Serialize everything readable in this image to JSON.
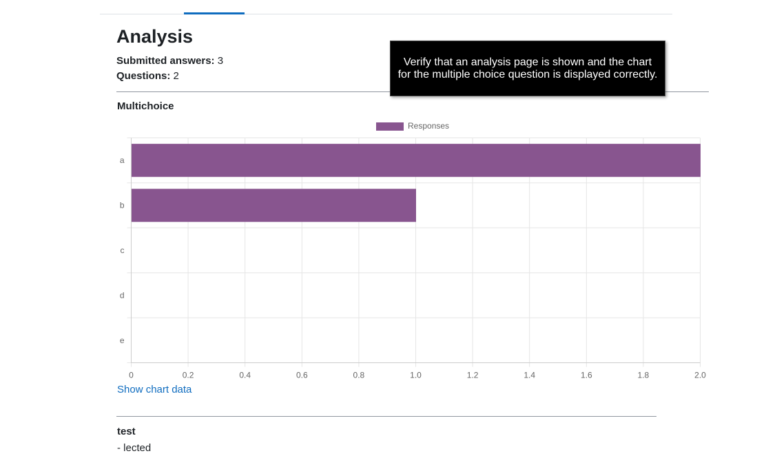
{
  "page": {
    "title": "Analysis",
    "summary": {
      "submitted_label": "Submitted answers:",
      "submitted_value": "3",
      "questions_label": "Questions:",
      "questions_value": "2"
    }
  },
  "question1": {
    "title": "Multichoice",
    "show_data_label": "Show chart data"
  },
  "question2": {
    "title": "test",
    "answer": "- lected"
  },
  "tooltip": {
    "text": "Verify that an analysis page is shown and the chart for the multiple choice question is displayed correctly."
  },
  "colors": {
    "bar": "#88558f",
    "link": "#0f6cbf",
    "grid": "#e5e5e5"
  },
  "chart_data": {
    "type": "bar",
    "orientation": "horizontal",
    "categories": [
      "a",
      "b",
      "c",
      "d",
      "e"
    ],
    "series": [
      {
        "name": "Responses",
        "values": [
          2,
          1,
          0,
          0,
          0
        ]
      }
    ],
    "xlim": [
      0,
      2
    ],
    "x_ticks": [
      "0",
      "0.2",
      "0.4",
      "0.6",
      "0.8",
      "1.0",
      "1.2",
      "1.4",
      "1.6",
      "1.8",
      "2.0"
    ],
    "legend_position": "top",
    "grid": true
  }
}
